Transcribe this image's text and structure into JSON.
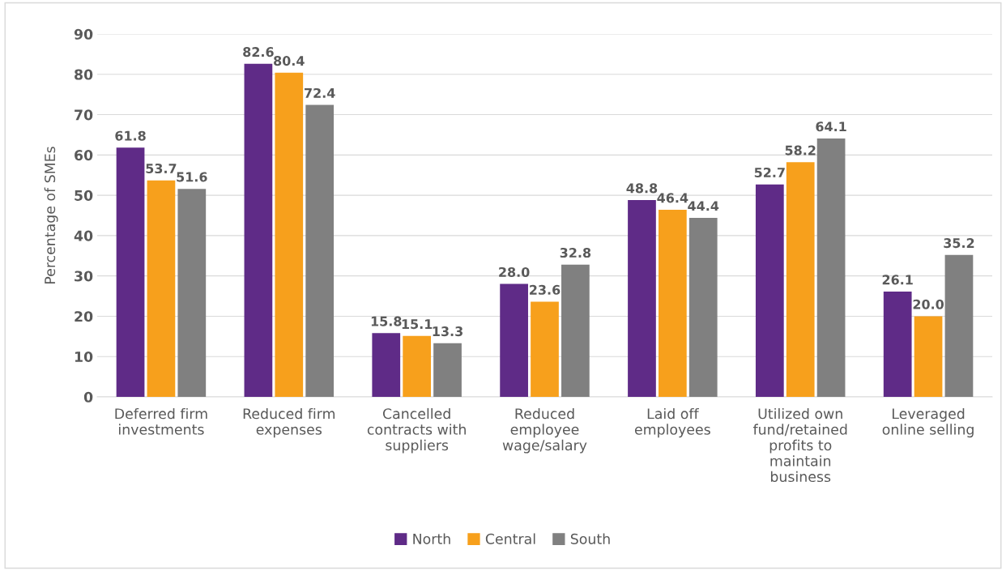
{
  "chart_data": {
    "type": "bar",
    "ylabel": "Percentage of SMEs",
    "categories": [
      "Deferred firm\ninvestments",
      "Reduced firm\nexpenses",
      "Cancelled\ncontracts with\nsuppliers",
      "Reduced\nemployee\nwage/salary",
      "Laid off\nemployees",
      "Utilized own\nfund/retained\nprofits to\nmaintain\nbusiness",
      "Leveraged\nonline selling"
    ],
    "series": [
      {
        "name": "North",
        "color": "#5f2b87",
        "values": [
          61.8,
          82.6,
          15.8,
          28,
          48.8,
          52.7,
          26.1
        ],
        "value_labels": [
          "61.8",
          "82.6",
          "15.8",
          "28.0",
          "48.8",
          "52.7",
          "26.1"
        ]
      },
      {
        "name": "Central",
        "color": "#f7a01c",
        "values": [
          53.7,
          80.4,
          15.1,
          23.6,
          46.4,
          58.2,
          20
        ],
        "value_labels": [
          "53.7",
          "80.4",
          "15.1",
          "23.6",
          "46.4",
          "58.2",
          "20.0"
        ]
      },
      {
        "name": "South",
        "color": "#808080",
        "values": [
          51.6,
          72.4,
          13.3,
          32.8,
          44.4,
          64.1,
          35.2
        ],
        "value_labels": [
          "51.6",
          "72.4",
          "13.3",
          "32.8",
          "44.4",
          "64.1",
          "35.2"
        ]
      }
    ],
    "ylim": [
      0,
      90
    ],
    "yticks": [
      0,
      10,
      20,
      30,
      40,
      50,
      60,
      70,
      80,
      90
    ],
    "grid": "y",
    "legend": "bottom"
  }
}
